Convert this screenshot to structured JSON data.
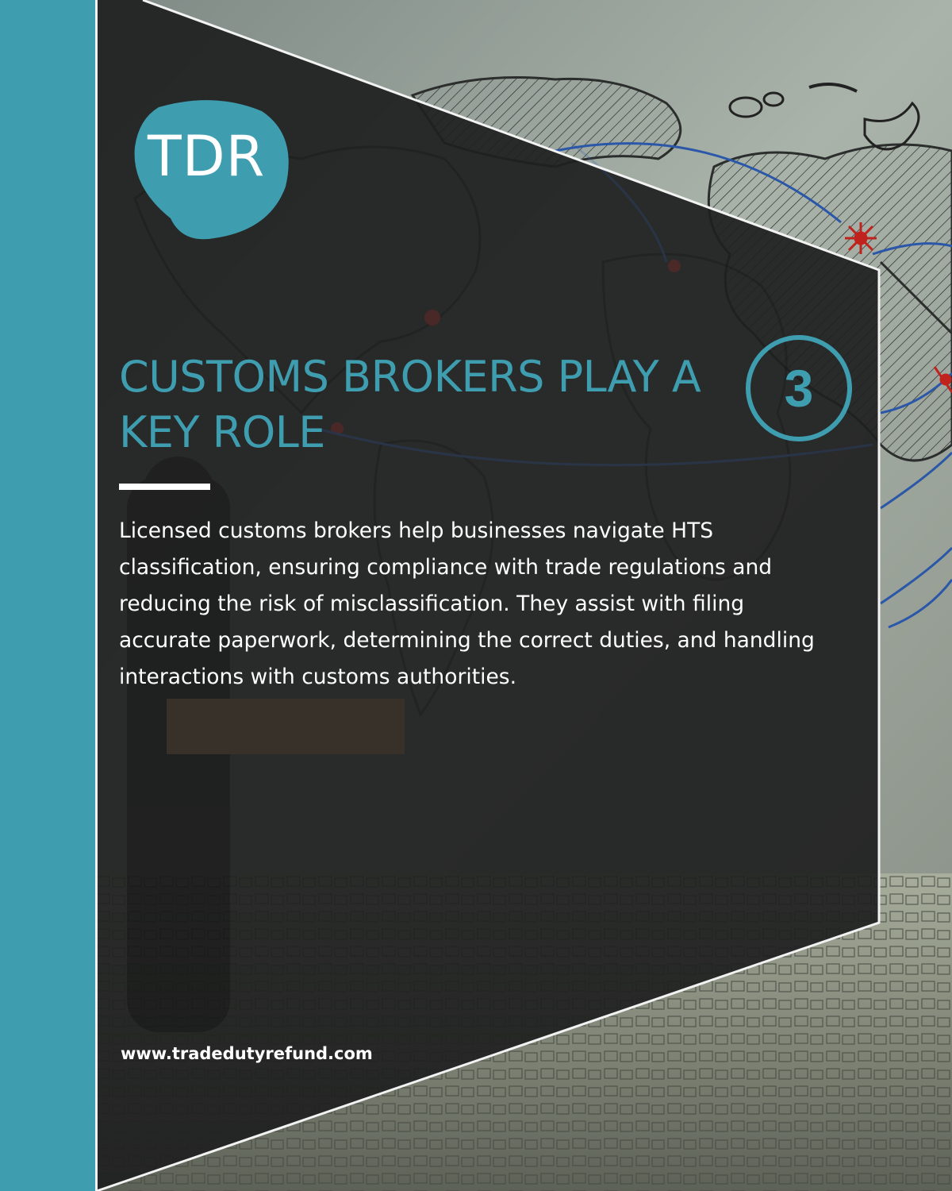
{
  "brand": {
    "logo_text": "TDR",
    "colors": {
      "accent": "#3f9db0",
      "panel": "#1e1f20",
      "text": "#ffffff"
    }
  },
  "slide": {
    "step_number": "3",
    "headline": "CUSTOMS BROKERS PLAY A KEY ROLE",
    "body": "Licensed customs brokers help businesses navigate HTS classification, ensuring compliance with trade regulations and reducing the risk of misclassification. They assist with filing accurate paperwork, determining the correct duties, and handling interactions with customs authorities."
  },
  "footer": {
    "website": "www.tradedutyrefund.com"
  }
}
